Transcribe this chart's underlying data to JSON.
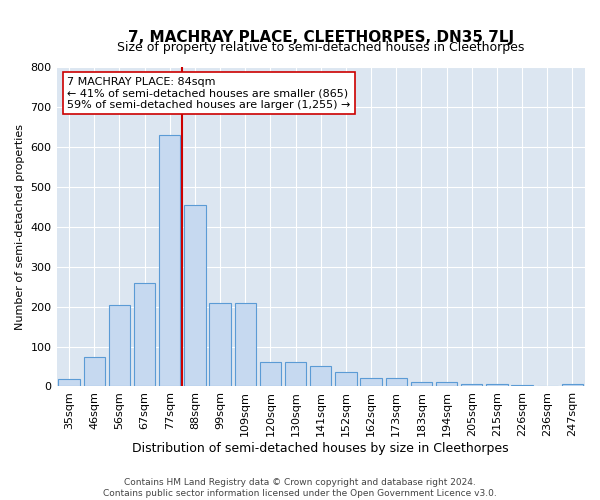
{
  "title": "7, MACHRAY PLACE, CLEETHORPES, DN35 7LJ",
  "subtitle": "Size of property relative to semi-detached houses in Cleethorpes",
  "xlabel": "Distribution of semi-detached houses by size in Cleethorpes",
  "ylabel": "Number of semi-detached properties",
  "categories": [
    "35sqm",
    "46sqm",
    "56sqm",
    "67sqm",
    "77sqm",
    "88sqm",
    "99sqm",
    "109sqm",
    "120sqm",
    "130sqm",
    "141sqm",
    "152sqm",
    "162sqm",
    "173sqm",
    "183sqm",
    "194sqm",
    "205sqm",
    "215sqm",
    "226sqm",
    "236sqm",
    "247sqm"
  ],
  "values": [
    18,
    75,
    205,
    260,
    630,
    455,
    210,
    210,
    60,
    60,
    50,
    35,
    20,
    20,
    12,
    12,
    5,
    5,
    3,
    2,
    5
  ],
  "bar_color": "#c6d9f0",
  "bar_edge_color": "#5b9bd5",
  "highlight_line_color": "#cc0000",
  "highlight_line_bin_index": 4,
  "annotation_text_line1": "7 MACHRAY PLACE: 84sqm",
  "annotation_text_line2": "← 41% of semi-detached houses are smaller (865)",
  "annotation_text_line3": "59% of semi-detached houses are larger (1,255) →",
  "ylim": [
    0,
    800
  ],
  "yticks": [
    0,
    100,
    200,
    300,
    400,
    500,
    600,
    700,
    800
  ],
  "plot_bg_color": "#dce6f1",
  "footer_line1": "Contains HM Land Registry data © Crown copyright and database right 2024.",
  "footer_line2": "Contains public sector information licensed under the Open Government Licence v3.0.",
  "title_fontsize": 11,
  "subtitle_fontsize": 9,
  "xlabel_fontsize": 9,
  "ylabel_fontsize": 8,
  "tick_fontsize": 8,
  "annotation_fontsize": 8,
  "footer_fontsize": 6.5
}
